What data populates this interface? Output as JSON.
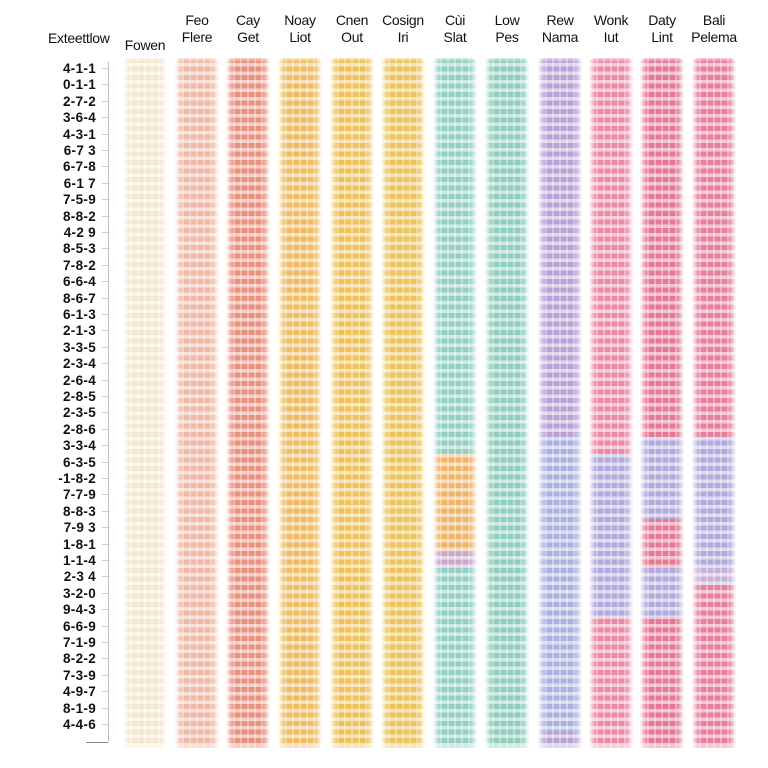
{
  "chart_data": {
    "type": "heatmap",
    "title": "",
    "row_header": "Exteettlow",
    "columns": [
      {
        "label_line1": "",
        "label_line2": "Fowen",
        "color": "#f3e6cf"
      },
      {
        "label_line1": "Feo",
        "label_line2": "Flere",
        "color": "#f0b8a6"
      },
      {
        "label_line1": "Cay",
        "label_line2": "Get",
        "color": "#e9907e"
      },
      {
        "label_line1": "Noay",
        "label_line2": "Liot",
        "color": "#efbc63"
      },
      {
        "label_line1": "Cnen",
        "label_line2": "Out",
        "color": "#eec05a"
      },
      {
        "label_line1": "Cosign",
        "label_line2": "Iri",
        "color": "#ecc35c"
      },
      {
        "label_line1": "Cùi",
        "label_line2": "Slat",
        "color": "#93cfc3"
      },
      {
        "label_line1": "Low",
        "label_line2": "Pes",
        "color": "#8fcdbd"
      },
      {
        "label_line1": "Rew",
        "label_line2": "Nama",
        "color": "#b9a2d6"
      },
      {
        "label_line1": "Wonk",
        "label_line2": "Iut",
        "color": "#ec8aa5"
      },
      {
        "label_line1": "Daty",
        "label_line2": "Lint",
        "color": "#e57995"
      },
      {
        "label_line1": "Bali",
        "label_line2": "Pelema",
        "color": "#e7809c"
      }
    ],
    "rows": [
      "4-1-1",
      "0-1-1",
      "2-7-2",
      "3-6-4",
      "4-3-1",
      "6-7 3",
      "6-7-8",
      "6-1 7",
      "7-5-9",
      "8-8-2",
      "4-2 9",
      "8-5-3",
      "7-8-2",
      "6-6-4",
      "8-6-7",
      "6-1-3",
      "2-1-3",
      "3-3-5",
      "2-3-4",
      "2-6-4",
      "2-8-5",
      "2-3-5",
      "2-8-6",
      "3-3-4",
      "6-3-5",
      "-1-8-2",
      "7-7-9",
      "8-8-3",
      "7-9 3",
      "1-8-1",
      "1-1-4",
      "2-3 4",
      "3-2-0",
      "9-4-3",
      "6-6-9",
      "7-1-9",
      "8-2-2",
      "7-3-9",
      "4-9-7",
      "8-1-9",
      "4-4-6"
    ],
    "bands": [
      {
        "column": "Cùi Slat",
        "from_row": 24,
        "to_row": 30,
        "color": "#f0b46a"
      },
      {
        "column": "Cùi Slat",
        "from_row": 30,
        "to_row": 31,
        "color": "#c9a6c9"
      },
      {
        "column": "Rew Nama",
        "from_row": 23,
        "to_row": 41,
        "color": "#a9b2de"
      },
      {
        "column": "Wonk Iut",
        "from_row": 24,
        "to_row": 34,
        "color": "#b1a9dc"
      },
      {
        "column": "Daty Lint",
        "from_row": 23,
        "to_row": 28,
        "color": "#b1a9dc"
      },
      {
        "column": "Daty Lint",
        "from_row": 28,
        "to_row": 31,
        "color": "#e57995"
      },
      {
        "column": "Daty Lint",
        "from_row": 31,
        "to_row": 34,
        "color": "#b1a9dc"
      },
      {
        "column": "Bali Pelema",
        "from_row": 23,
        "to_row": 31,
        "color": "#b1a9dc"
      },
      {
        "column": "Bali Pelema",
        "from_row": 31,
        "to_row": 32,
        "color": "#c7b0d8"
      }
    ],
    "legend": "none",
    "grid": false
  },
  "ui": {
    "row_header": "Exteettlow"
  }
}
